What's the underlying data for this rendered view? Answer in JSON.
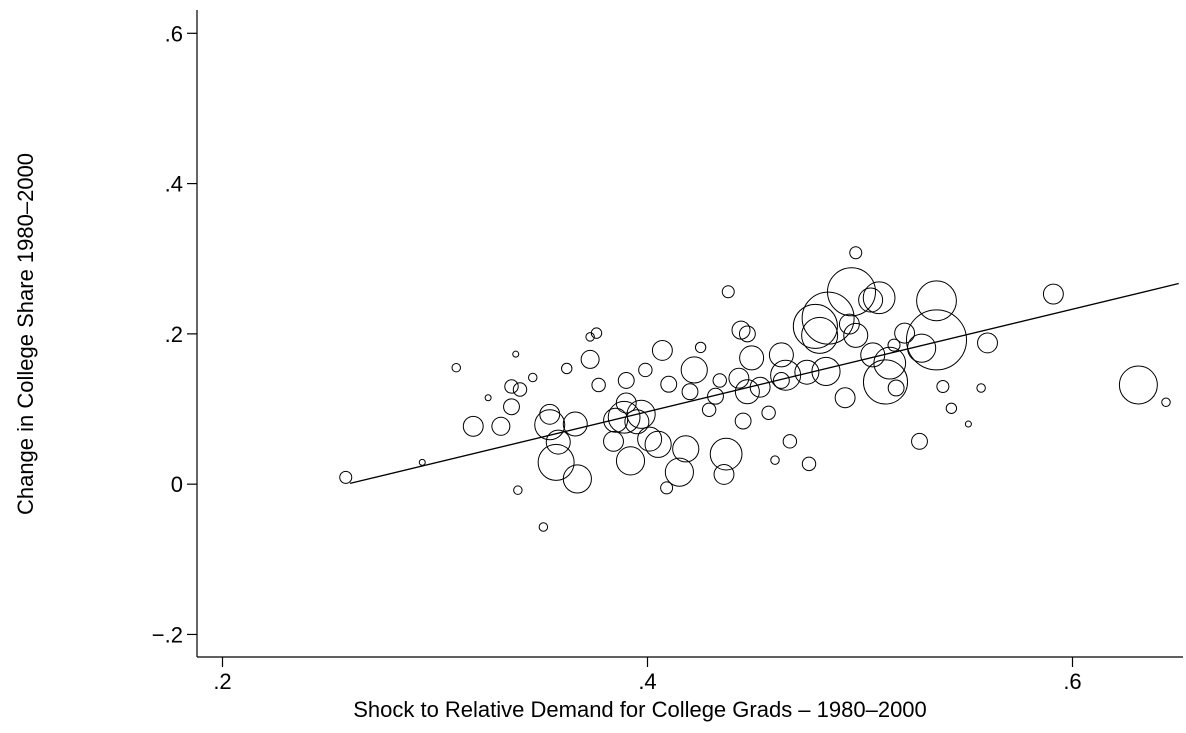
{
  "chart_data": {
    "type": "scatter",
    "x_label": "Shock to Relative Demand for College Grads – 1980–2000",
    "y_label": "Change in College Share 1980–2000",
    "xlim": [
      0.188,
      0.652
    ],
    "ylim": [
      -0.23,
      0.631
    ],
    "xticks": [
      {
        "value": 0.2,
        "label": ".2"
      },
      {
        "value": 0.4,
        "label": ".4"
      },
      {
        "value": 0.6,
        "label": ".6"
      }
    ],
    "yticks": [
      {
        "value": -0.2,
        "label": "−.2"
      },
      0,
      {
        "value": 0.2,
        "label": ".2"
      },
      {
        "value": 0.4,
        "label": ".4"
      },
      {
        "value": 0.6,
        "label": ".6"
      }
    ],
    "color": "#000000",
    "x": [
      0.258,
      0.294,
      0.31,
      0.325,
      0.338,
      0.336,
      0.34,
      0.318,
      0.331,
      0.336,
      0.339,
      0.351,
      0.346,
      0.354,
      0.357,
      0.354,
      0.358,
      0.362,
      0.367,
      0.366,
      0.373,
      0.376,
      0.373,
      0.377,
      0.384,
      0.385,
      0.389,
      0.39,
      0.392,
      0.39,
      0.395,
      0.397,
      0.399,
      0.401,
      0.407,
      0.405,
      0.415,
      0.41,
      0.418,
      0.422,
      0.42,
      0.425,
      0.429,
      0.432,
      0.434,
      0.436,
      0.437,
      0.438,
      0.443,
      0.445,
      0.444,
      0.447,
      0.449,
      0.447,
      0.453,
      0.457,
      0.46,
      0.463,
      0.463,
      0.465,
      0.467,
      0.476,
      0.475,
      0.481,
      0.484,
      0.479,
      0.485,
      0.493,
      0.495,
      0.496,
      0.498,
      0.498,
      0.505,
      0.509,
      0.506,
      0.514,
      0.512,
      0.517,
      0.516,
      0.521,
      0.528,
      0.529,
      0.536,
      0.536,
      0.539,
      0.543,
      0.551,
      0.557,
      0.56,
      0.591,
      0.631,
      0.644,
      0.409
    ],
    "values": [
      0.009,
      0.029,
      0.155,
      0.115,
      0.173,
      0.13,
      0.126,
      0.077,
      0.077,
      0.103,
      -0.008,
      -0.057,
      0.142,
      0.079,
      0.029,
      0.093,
      0.056,
      0.154,
      0.007,
      0.08,
      0.166,
      0.201,
      0.196,
      0.132,
      0.057,
      0.085,
      0.089,
      0.108,
      0.031,
      0.138,
      0.083,
      0.093,
      0.152,
      0.06,
      0.178,
      0.053,
      0.016,
      0.133,
      0.047,
      0.152,
      0.123,
      0.182,
      0.099,
      0.117,
      0.138,
      0.013,
      0.04,
      0.256,
      0.141,
      0.084,
      0.205,
      0.123,
      0.168,
      0.2,
      0.129,
      0.095,
      0.032,
      0.172,
      0.138,
      0.145,
      0.057,
      0.027,
      0.149,
      0.198,
      0.15,
      0.21,
      0.221,
      0.115,
      0.213,
      0.256,
      0.198,
      0.308,
      0.245,
      0.248,
      0.172,
      0.161,
      0.136,
      0.128,
      0.185,
      0.201,
      0.057,
      0.181,
      0.192,
      0.244,
      0.13,
      0.101,
      0.08,
      0.128,
      0.188,
      0.253,
      0.132,
      0.109,
      -0.005
    ],
    "sizes": [
      4,
      1,
      2,
      1,
      1,
      5,
      5,
      11,
      9,
      7,
      2,
      2,
      2,
      25,
      36,
      11,
      16,
      3,
      22,
      16,
      9,
      3,
      2,
      5,
      11,
      16,
      28,
      11,
      22,
      7,
      16,
      22,
      5,
      16,
      11,
      19,
      22,
      7,
      19,
      19,
      7,
      3,
      5,
      7,
      5,
      11,
      28,
      4,
      11,
      7,
      9,
      16,
      16,
      7,
      11,
      5,
      2,
      16,
      7,
      25,
      5,
      5,
      16,
      36,
      22,
      54,
      75,
      11,
      11,
      64,
      16,
      4,
      16,
      28,
      16,
      28,
      54,
      7,
      4,
      11,
      7,
      22,
      100,
      44,
      4,
      3,
      1,
      2,
      11,
      11,
      40,
      2,
      4
    ],
    "fit_line": {
      "x": [
        0.26,
        0.65
      ],
      "values": [
        0.001,
        0.267
      ]
    }
  }
}
